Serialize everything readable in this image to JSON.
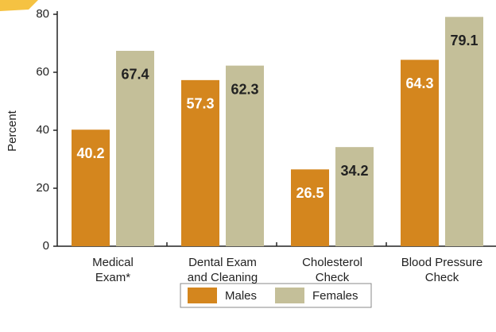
{
  "chart_data": {
    "type": "bar",
    "y_label": "Percent",
    "categories": [
      [
        "Medical",
        "Exam*"
      ],
      [
        "Dental Exam",
        "and Cleaning"
      ],
      [
        "Cholesterol",
        "Check"
      ],
      [
        "Blood Pressure",
        "Check"
      ]
    ],
    "series": [
      {
        "name": "Males",
        "color": "#d4861e",
        "values": [
          40.2,
          57.3,
          26.5,
          64.3
        ]
      },
      {
        "name": "Females",
        "color": "#c4bf99",
        "values": [
          67.4,
          62.3,
          34.2,
          79.1
        ]
      }
    ],
    "ylim": [
      0,
      80
    ],
    "yticks": [
      0,
      20,
      40,
      60,
      80
    ],
    "grid": false
  }
}
